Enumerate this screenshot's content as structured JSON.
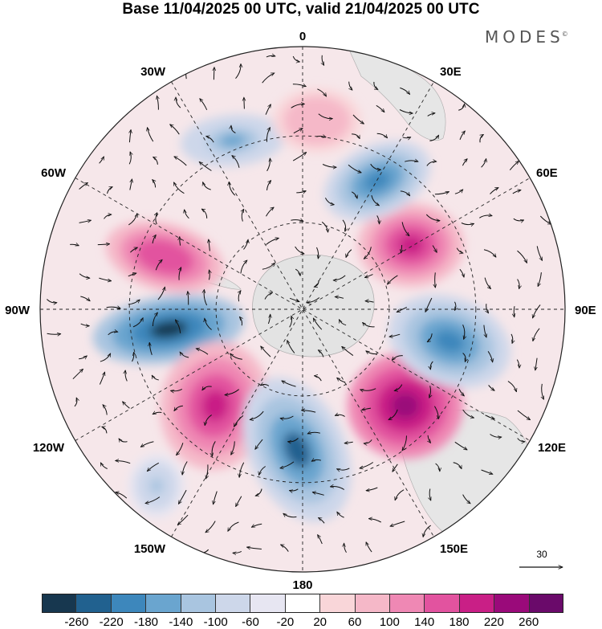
{
  "title": "Base 11/04/2025 00 UTC, valid 21/04/2025 00 UTC",
  "brand": "MODES",
  "brand_mark": "©",
  "projection": "south-polar-stereographic",
  "longitude_labels": [
    "0",
    "30E",
    "60E",
    "90E",
    "120E",
    "150E",
    "180",
    "150W",
    "120W",
    "90W",
    "60W",
    "30W"
  ],
  "colorbar": {
    "colors": [
      "#17374f",
      "#21618f",
      "#3d87bc",
      "#6aa5cf",
      "#a9c5e0",
      "#cdd7ea",
      "#e7e6f2",
      "#ffffff",
      "#f9d6d9",
      "#f5b8c8",
      "#ef88b4",
      "#e2539f",
      "#c91f86",
      "#9a0a7a",
      "#6a0a6a"
    ],
    "tick_labels": [
      "-260",
      "-220",
      "-180",
      "-140",
      "-100",
      "-60",
      "-20",
      "20",
      "60",
      "100",
      "140",
      "180",
      "220",
      "260"
    ]
  },
  "reference_vector": {
    "value": "30"
  },
  "anomaly_centers": [
    {
      "sign": "negative",
      "level": -260
    },
    {
      "sign": "positive",
      "level": 220
    },
    {
      "sign": "negative",
      "level": -220
    },
    {
      "sign": "positive",
      "level": 260
    },
    {
      "sign": "negative",
      "level": -180
    },
    {
      "sign": "positive",
      "level": 220
    },
    {
      "sign": "negative",
      "level": -180
    },
    {
      "sign": "positive",
      "level": 180
    },
    {
      "sign": "negative",
      "level": -140
    },
    {
      "sign": "positive",
      "level": 100
    },
    {
      "sign": "negative",
      "level": -100
    }
  ]
}
